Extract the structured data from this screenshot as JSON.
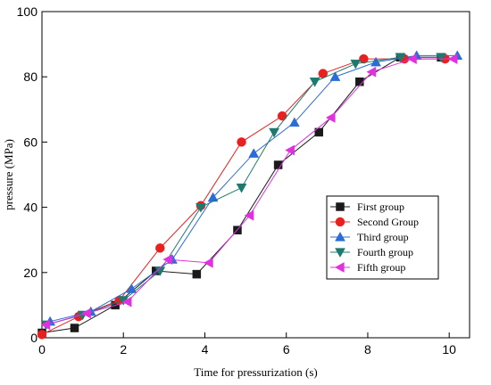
{
  "chart_data": {
    "type": "line",
    "title": "",
    "xlabel": "Time for pressurization (s)",
    "ylabel": "pressure (MPa)",
    "xlim": [
      0,
      10.5
    ],
    "ylim": [
      0,
      100
    ],
    "x_ticks": [
      0,
      2,
      4,
      6,
      8,
      10
    ],
    "y_ticks": [
      0,
      20,
      40,
      60,
      80,
      100
    ],
    "grid": false,
    "legend_position": "center-right",
    "series": [
      {
        "name": "First group",
        "color": "#1a1a1a",
        "marker": "square",
        "x": [
          0,
          0.8,
          1.8,
          2.8,
          3.8,
          4.8,
          5.8,
          6.8,
          7.8,
          8.8,
          9.8
        ],
        "y": [
          1.5,
          3.0,
          10.0,
          20.5,
          19.5,
          33.0,
          53.0,
          63.0,
          78.5,
          86.0,
          86.0
        ]
      },
      {
        "name": "Second Group",
        "color": "#e82020",
        "marker": "circle",
        "x": [
          0,
          0.9,
          1.9,
          2.9,
          3.9,
          4.9,
          5.9,
          6.9,
          7.9,
          8.9,
          9.9
        ],
        "y": [
          1.0,
          6.5,
          11.5,
          27.5,
          40.5,
          60.0,
          68.0,
          81.0,
          85.5,
          85.5,
          85.5
        ]
      },
      {
        "name": "Third group",
        "color": "#2b6cd8",
        "marker": "triangle-up",
        "x": [
          0.2,
          1.2,
          2.2,
          3.2,
          4.2,
          5.2,
          6.2,
          7.2,
          8.2,
          9.2,
          10.2
        ],
        "y": [
          5.0,
          8.0,
          15.0,
          24.0,
          43.0,
          56.5,
          66.0,
          80.0,
          84.5,
          86.5,
          86.5
        ]
      },
      {
        "name": "Fourth group",
        "color": "#1e7a6e",
        "marker": "triangle-down",
        "x": [
          0.1,
          1.0,
          2.0,
          2.9,
          3.9,
          4.9,
          5.7,
          6.7,
          7.7,
          8.8,
          9.8
        ],
        "y": [
          4.0,
          7.0,
          11.5,
          20.5,
          40.0,
          46.0,
          63.0,
          78.5,
          84.0,
          86.0,
          86.0
        ]
      },
      {
        "name": "Fifth group",
        "color": "#e030e0",
        "marker": "triangle-left",
        "x": [
          0.1,
          1.1,
          2.1,
          3.1,
          4.1,
          5.1,
          6.1,
          7.1,
          8.1,
          9.1,
          10.1
        ],
        "y": [
          4.0,
          7.5,
          11.0,
          24.0,
          23.0,
          37.5,
          57.5,
          67.5,
          81.5,
          85.5,
          85.5
        ]
      }
    ]
  }
}
